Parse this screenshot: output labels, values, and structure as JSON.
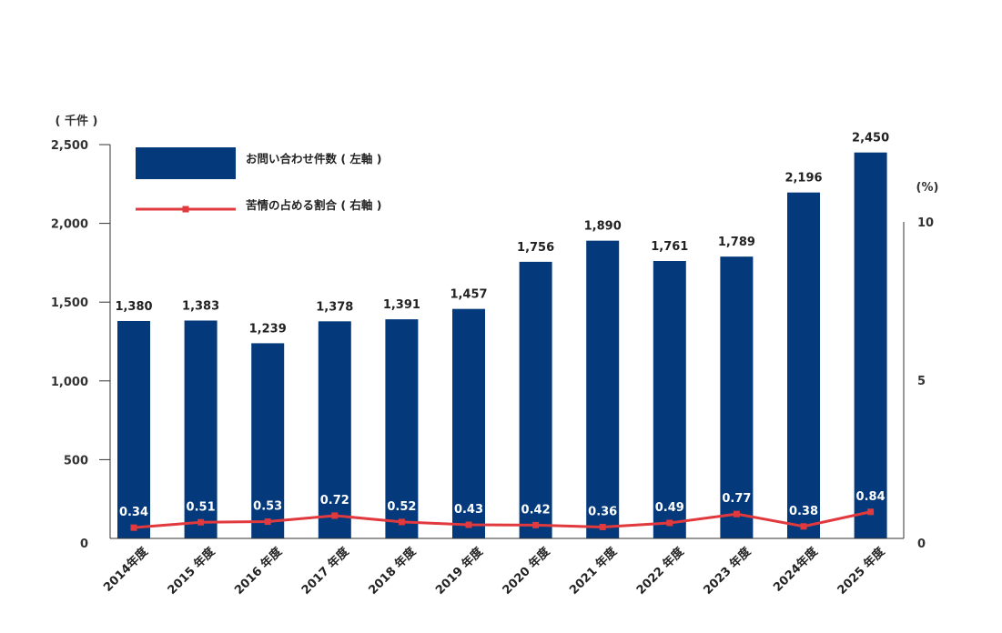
{
  "chart_data": {
    "type": "bar",
    "categories": [
      "2014年度",
      "2015 年度",
      "2016 年度",
      "2017 年度",
      "2018 年度",
      "2019 年度",
      "2020 年度",
      "2021 年度",
      "2022 年度",
      "2023 年度",
      "2024年度",
      "2025 年度"
    ],
    "series": [
      {
        "name": "お問い合わせ件数 ( 左軸 )",
        "type": "bar",
        "axis": "left",
        "color": "#043a7c",
        "values": [
          1380,
          1383,
          1239,
          1378,
          1391,
          1457,
          1756,
          1890,
          1761,
          1789,
          2196,
          2450
        ],
        "labels": [
          "1,380",
          "1,383",
          "1,239",
          "1,378",
          "1,391",
          "1,457",
          "1,756",
          "1,890",
          "1,761",
          "1,789",
          "2,196",
          "2,450"
        ]
      },
      {
        "name": "苦情の占める割合 ( 右軸 )",
        "type": "line",
        "axis": "right",
        "color": "#e0393e",
        "values": [
          0.34,
          0.51,
          0.53,
          0.72,
          0.52,
          0.43,
          0.42,
          0.36,
          0.49,
          0.77,
          0.38,
          0.84
        ],
        "labels": [
          "0.34",
          "0.51",
          "0.53",
          "0.72",
          "0.52",
          "0.43",
          "0.42",
          "0.36",
          "0.49",
          "0.77",
          "0.38",
          "0.84"
        ]
      }
    ],
    "left_axis": {
      "unit": "( 千件 )",
      "ylim": [
        0,
        2500
      ],
      "ticks": [
        0,
        500,
        1000,
        1500,
        2000,
        2500
      ],
      "tick_labels": [
        "0",
        "500",
        "1,000",
        "1,500",
        "2,000",
        "2,500"
      ]
    },
    "right_axis": {
      "unit": "(%)",
      "ylim": [
        0,
        10
      ],
      "ticks": [
        0,
        5,
        10
      ],
      "tick_labels": [
        "0",
        "5",
        "10"
      ]
    },
    "legend_placement": "top-left",
    "grid": false
  }
}
